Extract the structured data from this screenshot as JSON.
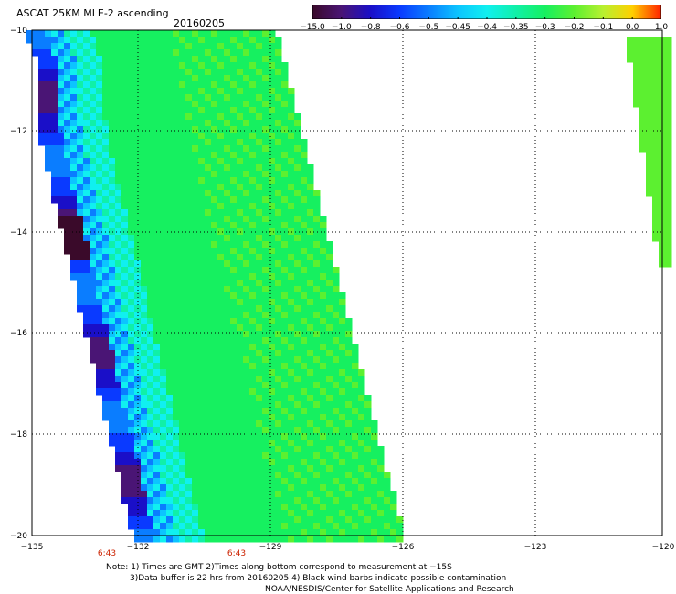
{
  "header": {
    "title": "ASCAT 25KM MLE-2 ascending",
    "date": "20160205"
  },
  "colorbar": {
    "labels": [
      "−15.0",
      "−1.0",
      "−0.8",
      "−0.6",
      "−0.5",
      "−0.45",
      "−0.4",
      "−0.35",
      "−0.3",
      "−0.2",
      "−0.1",
      "0.0",
      "1.0"
    ],
    "colors": [
      "#3a0a2a",
      "#4a1575",
      "#1a0fc8",
      "#0a3aff",
      "#0a7dff",
      "#0cc4ff",
      "#10f0f0",
      "#10f0a8",
      "#16f060",
      "#5cf030",
      "#b8f030",
      "#ffd000",
      "#ff2000"
    ]
  },
  "axes": {
    "x_ticks": [
      "−135",
      "−132",
      "−129",
      "−126",
      "−123",
      "−120"
    ],
    "y_ticks": [
      "−10",
      "−12",
      "−14",
      "−16",
      "−18",
      "−20"
    ]
  },
  "time_labels": [
    "6:43",
    "6:43"
  ],
  "notes": {
    "line1": "Note: 1) Times are GMT 2)Times along bottom correspond to measurement at −15S",
    "line2": "3)Data buffer is 22 hrs from 20160205 4) Black wind barbs indicate possible contamination",
    "line3": "NOAA/NESDIS/Center for Satellite Applications and Research"
  }
}
